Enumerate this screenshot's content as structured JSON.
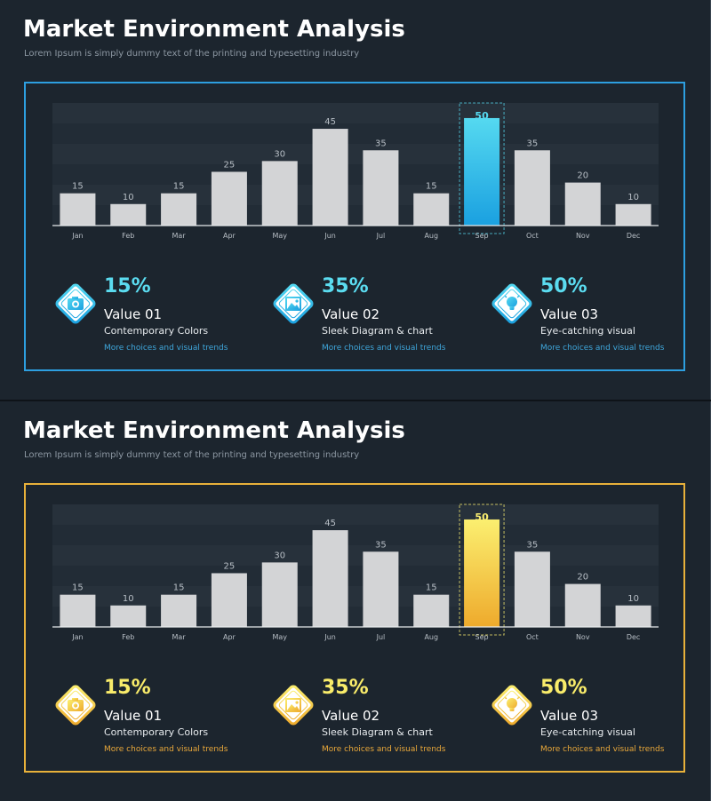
{
  "slides": [
    {
      "variant": "blue",
      "title": "Market Environment Analysis",
      "subtitle": "Lorem Ipsum is simply dummy text of the printing and typesetting industry",
      "colors": {
        "accent": "#2d9fe0",
        "bar_top": "#55d9f0",
        "bar_bottom": "#1aa0e0",
        "pct": "#5bdcf0",
        "link": "#3fa7dc"
      },
      "items": [
        {
          "percent": "15%",
          "name": "Value 01",
          "desc": "Contemporary Colors",
          "link": "More choices and visual trends",
          "icon": "camera-icon"
        },
        {
          "percent": "35%",
          "name": "Value 02",
          "desc": "Sleek Diagram & chart",
          "link": "More choices and visual trends",
          "icon": "image-icon"
        },
        {
          "percent": "50%",
          "name": "Value 03",
          "desc": "Eye-catching visual",
          "link": "More choices and visual trends",
          "icon": "lightbulb-icon"
        }
      ]
    },
    {
      "variant": "orange",
      "title": "Market Environment Analysis",
      "subtitle": "Lorem Ipsum is simply dummy text of the printing and typesetting industry",
      "colors": {
        "accent": "#e8b13a",
        "bar_top": "#fbef70",
        "bar_bottom": "#eeaa2c",
        "pct": "#f9ec6a",
        "link": "#e9a83a"
      },
      "items": [
        {
          "percent": "15%",
          "name": "Value 01",
          "desc": "Contemporary Colors",
          "link": "More choices and visual trends",
          "icon": "camera-icon"
        },
        {
          "percent": "35%",
          "name": "Value 02",
          "desc": "Sleek Diagram & chart",
          "link": "More choices and visual trends",
          "icon": "image-icon"
        },
        {
          "percent": "50%",
          "name": "Value 03",
          "desc": "Eye-catching visual",
          "link": "More choices and visual trends",
          "icon": "lightbulb-icon"
        }
      ]
    }
  ],
  "chart_data": [
    {
      "type": "bar",
      "categories": [
        "Jan",
        "Feb",
        "Mar",
        "Apr",
        "May",
        "Jun",
        "Jul",
        "Aug",
        "Sep",
        "Oct",
        "Nov",
        "Dec"
      ],
      "values": [
        15,
        10,
        15,
        25,
        30,
        45,
        35,
        15,
        50,
        35,
        20,
        10
      ],
      "highlight": "Sep",
      "ylim": [
        0,
        57
      ],
      "title": "",
      "xlabel": "",
      "ylabel": ""
    },
    {
      "type": "bar",
      "categories": [
        "Jan",
        "Feb",
        "Mar",
        "Apr",
        "May",
        "Jun",
        "Jul",
        "Aug",
        "Sep",
        "Oct",
        "Nov",
        "Dec"
      ],
      "values": [
        15,
        10,
        15,
        25,
        30,
        45,
        35,
        15,
        50,
        35,
        20,
        10
      ],
      "highlight": "Sep",
      "ylim": [
        0,
        57
      ],
      "title": "",
      "xlabel": "",
      "ylabel": ""
    }
  ]
}
